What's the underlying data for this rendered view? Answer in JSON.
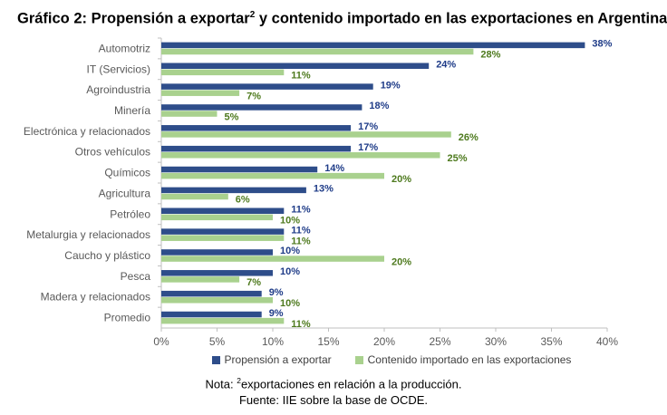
{
  "title": {
    "main": "Gráfico 2: Propensión a exportar",
    "sup": "2",
    "rest": " y contenido importado en las exportaciones en Argentina"
  },
  "colors": {
    "export": "#2e4d8a",
    "import": "#a9d18e",
    "export_label": "#1f3c88",
    "import_label": "#4e7a1e",
    "axis": "#bfbfbf",
    "tick": "#595959"
  },
  "chart_data": {
    "type": "bar",
    "orientation": "horizontal",
    "categories": [
      "Automotriz",
      "IT (Servicios)",
      "Agroindustria",
      "Minería",
      "Electrónica y relacionados",
      "Otros vehículos",
      "Químicos",
      "Agricultura",
      "Petróleo",
      "Metalurgia y relacionados",
      "Caucho y plástico",
      "Pesca",
      "Madera y relacionados",
      "Promedio"
    ],
    "series": [
      {
        "name": "Propensión a exportar",
        "values": [
          38,
          24,
          19,
          18,
          17,
          17,
          14,
          13,
          11,
          11,
          10,
          10,
          9,
          9
        ]
      },
      {
        "name": "Contenido importado en las exportaciones",
        "values": [
          28,
          11,
          7,
          5,
          26,
          25,
          20,
          6,
          10,
          11,
          20,
          7,
          10,
          11
        ]
      }
    ],
    "xlim": [
      0,
      40
    ],
    "xticks": [
      "0%",
      "5%",
      "10%",
      "15%",
      "20%",
      "25%",
      "30%",
      "35%",
      "40%"
    ],
    "value_suffix": "%",
    "grid": false,
    "legend": "bottom"
  },
  "note": {
    "prefix": "Nota: ",
    "sup": "2",
    "text": "exportaciones en relación a la producción."
  },
  "source": "Fuente: IIE sobre la base de OCDE."
}
